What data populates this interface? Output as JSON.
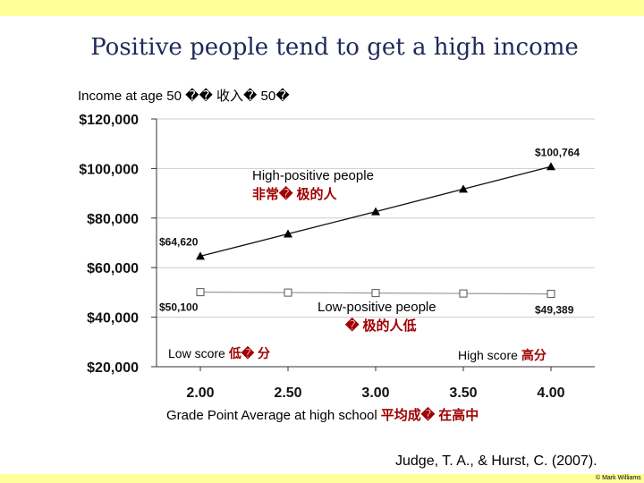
{
  "slide": {
    "title": "Positive people tend to  get a high income",
    "caption": "Income at age 50 �� 收入� 50�",
    "citation": "Judge, T. A., & Hurst, C. (2007).",
    "copyright": "© Mark Williams",
    "accent_bar_color": "#ffff99"
  },
  "chart_data": {
    "type": "line",
    "title": "",
    "ylabel": "Income at age 50 �� 收入� 50�",
    "xlabel": "Grade Point Average at high school",
    "xlabel_cn": "平均成� 在高中",
    "x": [
      2.0,
      2.5,
      3.0,
      3.5,
      4.0
    ],
    "x_tick_labels": [
      "2.00",
      "2.50",
      "3.00",
      "3.50",
      "4.00"
    ],
    "xlim": [
      1.75,
      4.25
    ],
    "ylim": [
      20000,
      120000
    ],
    "y_ticks": [
      20000,
      40000,
      60000,
      80000,
      100000,
      120000
    ],
    "y_tick_labels": [
      "$20,000",
      "$40,000",
      "$60,000",
      "$80,000",
      "$100,000",
      "$120,000"
    ],
    "grid": "horizontal",
    "series": [
      {
        "name": "High-positive people",
        "name_cn": "非常� 极的人",
        "marker": "triangle",
        "values": [
          64620,
          73600,
          82600,
          91700,
          100764
        ],
        "start_label": "$64,620",
        "end_label": "$100,764"
      },
      {
        "name": "Low-positive people",
        "name_cn": "� 极的人低",
        "marker": "square",
        "values": [
          50100,
          49920,
          49740,
          49560,
          49389
        ],
        "start_label": "$50,100",
        "end_label": "$49,389"
      }
    ],
    "annotations": {
      "low_score": "Low score",
      "low_score_cn": "低� 分",
      "high_score": "High score",
      "high_score_cn": "高分"
    }
  }
}
